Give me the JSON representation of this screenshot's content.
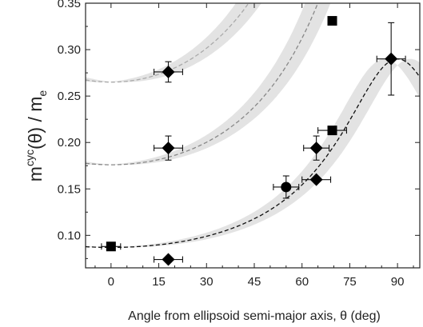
{
  "chart_data": {
    "type": "scatter",
    "xlabel": "Angle from ellipsoid semi-major axis, θ (deg)",
    "ylabel": {
      "prefix": "m",
      "superscript": "cyc",
      "middle": "(θ) / m",
      "subscript": "e"
    },
    "xlim": [
      -8,
      97
    ],
    "ylim": [
      0.065,
      0.35
    ],
    "xticks": [
      0,
      15,
      30,
      45,
      60,
      75,
      90
    ],
    "yticks": [
      0.1,
      0.15,
      0.2,
      0.25,
      0.3,
      0.35
    ],
    "ytick_labels": [
      "0.10",
      "0.15",
      "0.20",
      "0.25",
      "0.30",
      "0.35"
    ],
    "grid": false,
    "series": [
      {
        "marker": "square",
        "points": [
          {
            "x": 0,
            "y": 0.088,
            "xerr": 3,
            "yerr": 0
          },
          {
            "x": 69.5,
            "y": 0.331,
            "xerr": 0,
            "yerr": 0
          },
          {
            "x": 69.5,
            "y": 0.213,
            "xerr": 4.5,
            "yerr": 0
          }
        ]
      },
      {
        "marker": "diamond",
        "points": [
          {
            "x": 18,
            "y": 0.276,
            "xerr": 4.5,
            "yerr": 0.011
          },
          {
            "x": 18,
            "y": 0.194,
            "xerr": 4.5,
            "yerr": 0.013
          },
          {
            "x": 18,
            "y": 0.074,
            "xerr": 4.5,
            "yerr": 0.003
          },
          {
            "x": 64.5,
            "y": 0.194,
            "xerr": 4,
            "yerr": 0.013
          },
          {
            "x": 64.5,
            "y": 0.16,
            "xerr": 4.5,
            "yerr": 0
          },
          {
            "x": 88,
            "y": 0.29,
            "xerr": 4.5,
            "yerr": 0.039
          }
        ]
      },
      {
        "marker": "circle",
        "points": [
          {
            "x": 55,
            "y": 0.152,
            "xerr": 4,
            "yerr": 0.012
          }
        ]
      }
    ],
    "model_curves": [
      {
        "m0": 0.265,
        "a": 0.3,
        "style": "dashed",
        "color": "#aaaaaa",
        "band": true
      },
      {
        "m0": 0.176,
        "a": 0.3,
        "style": "dashed",
        "color": "#888888",
        "band": true
      },
      {
        "m0": 0.087,
        "a": 0.3,
        "style": "dashed",
        "color": "#111111",
        "band": true
      }
    ],
    "band_color": "#e3e3e3"
  }
}
